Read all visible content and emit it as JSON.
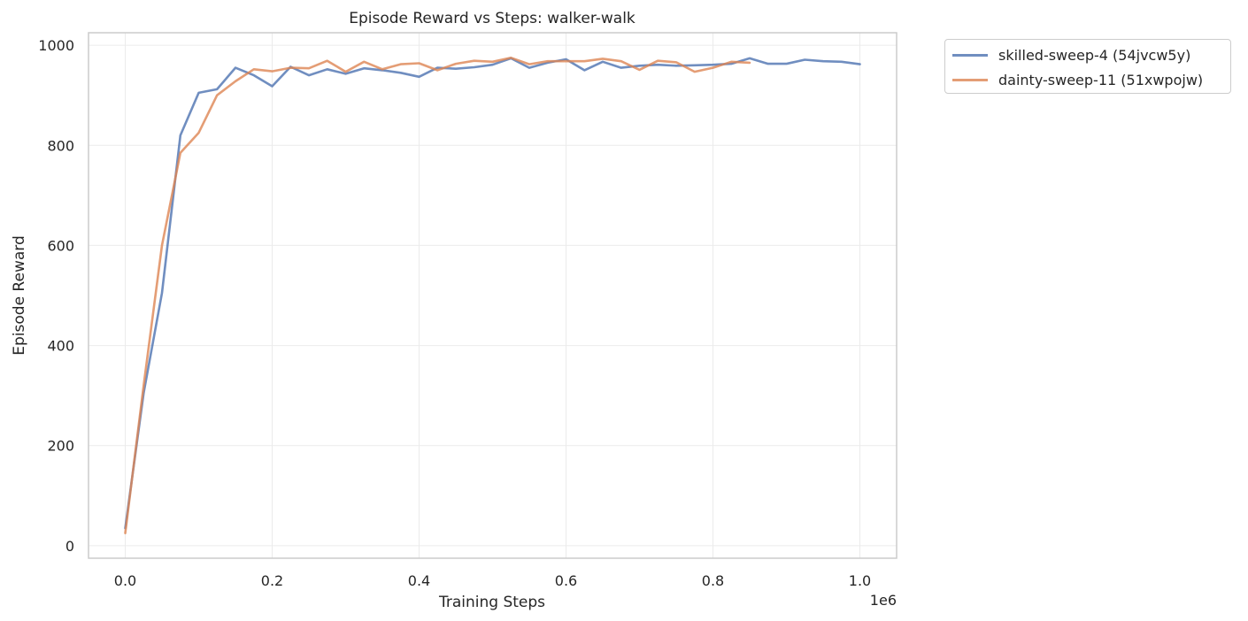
{
  "chart_data": {
    "type": "line",
    "title": "Episode Reward vs Steps: walker-walk",
    "xlabel": "Training Steps",
    "ylabel": "Episode Reward",
    "x_offset_label": "1e6",
    "xlim": [
      -0.05,
      1.05
    ],
    "ylim": [
      -25,
      1025
    ],
    "xticks": [
      0.0,
      0.2,
      0.4,
      0.6,
      0.8,
      1.0
    ],
    "xtick_labels": [
      "0.0",
      "0.2",
      "0.4",
      "0.6",
      "0.8",
      "1.0"
    ],
    "yticks": [
      0,
      200,
      400,
      600,
      800,
      1000
    ],
    "ytick_labels": [
      "0",
      "200",
      "400",
      "600",
      "800",
      "1000"
    ],
    "grid": true,
    "legend_position": "outside-top-right",
    "series": [
      {
        "name": "skilled-sweep-4 (54jvcw5y)",
        "color": "#4c72b0",
        "x": [
          0.0,
          0.025,
          0.05,
          0.075,
          0.1,
          0.125,
          0.15,
          0.175,
          0.2,
          0.225,
          0.25,
          0.275,
          0.3,
          0.325,
          0.35,
          0.375,
          0.4,
          0.425,
          0.45,
          0.475,
          0.5,
          0.525,
          0.55,
          0.575,
          0.6,
          0.625,
          0.65,
          0.675,
          0.7,
          0.725,
          0.75,
          0.775,
          0.8,
          0.825,
          0.85,
          0.875,
          0.9,
          0.925,
          0.95,
          0.975,
          1.0
        ],
        "values": [
          35,
          305,
          505,
          820,
          905,
          912,
          955,
          940,
          918,
          957,
          940,
          952,
          943,
          954,
          950,
          945,
          937,
          955,
          953,
          956,
          961,
          974,
          955,
          965,
          972,
          950,
          967,
          955,
          959,
          961,
          959,
          960,
          961,
          963,
          974,
          963,
          963,
          971,
          968,
          967,
          962
        ]
      },
      {
        "name": "dainty-sweep-11 (51xwpojw)",
        "color": "#dd8452",
        "x": [
          0.0,
          0.025,
          0.05,
          0.075,
          0.1,
          0.125,
          0.15,
          0.175,
          0.2,
          0.225,
          0.25,
          0.275,
          0.3,
          0.325,
          0.35,
          0.375,
          0.4,
          0.425,
          0.45,
          0.475,
          0.5,
          0.525,
          0.55,
          0.575,
          0.6,
          0.625,
          0.65,
          0.675,
          0.7,
          0.725,
          0.75,
          0.775,
          0.8,
          0.825,
          0.85
        ],
        "values": [
          25,
          320,
          600,
          785,
          825,
          900,
          928,
          952,
          948,
          955,
          954,
          969,
          947,
          967,
          952,
          962,
          964,
          950,
          963,
          969,
          967,
          975,
          962,
          968,
          968,
          968,
          973,
          968,
          951,
          969,
          966,
          947,
          955,
          967,
          965
        ]
      }
    ]
  }
}
